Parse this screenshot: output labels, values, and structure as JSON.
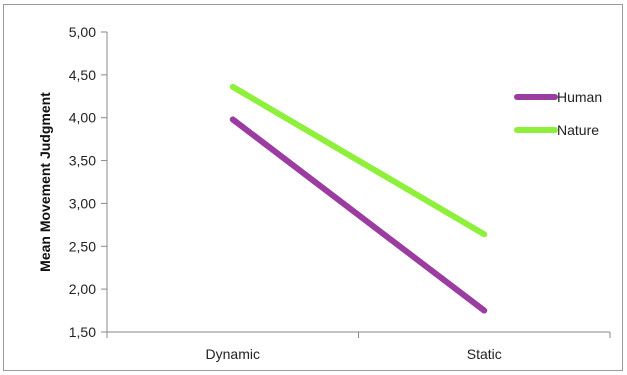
{
  "chart_data": {
    "type": "line",
    "title": "",
    "xlabel": "",
    "ylabel": "Mean Movement Judgment",
    "categories": [
      "Dynamic",
      "Static"
    ],
    "ylim": [
      1.5,
      5.0
    ],
    "ytick_step": 0.5,
    "ytick_labels": [
      "1,50",
      "2,00",
      "2,50",
      "3,00",
      "3,50",
      "4,00",
      "4,50",
      "5,00"
    ],
    "grid": false,
    "legend_position": "right",
    "series": [
      {
        "name": "Human",
        "values": [
          3.98,
          1.75
        ],
        "color": "#9B3DA0"
      },
      {
        "name": "Nature",
        "values": [
          4.36,
          2.64
        ],
        "color": "#8EF03A"
      }
    ]
  }
}
